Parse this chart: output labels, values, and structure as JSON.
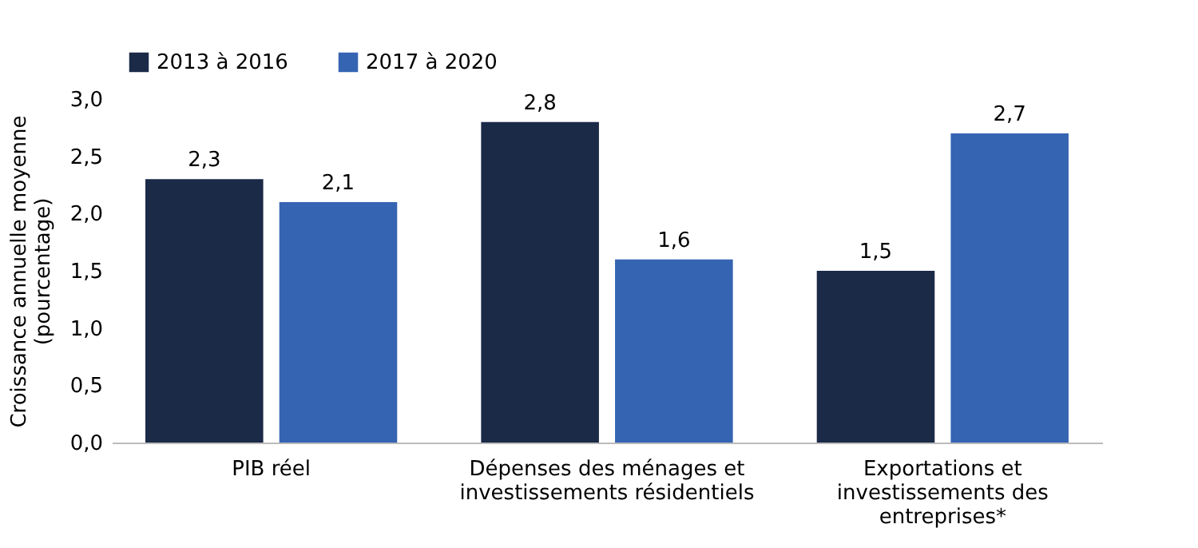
{
  "chart_data": {
    "type": "bar",
    "ylabel": "Croissance annuelle moyenne (pourcentage)",
    "categories": [
      "PIB réel",
      "Dépenses des ménages et investissements résidentiels",
      "Exportations et investissements des entreprises*"
    ],
    "series": [
      {
        "name": "2013 à 2016",
        "color": "#1b2a47",
        "values": [
          2.3,
          2.8,
          1.5
        ],
        "value_labels": [
          "2,3",
          "2,8",
          "1,5"
        ]
      },
      {
        "name": "2017 à 2020",
        "color": "#3564b2",
        "values": [
          2.1,
          1.6,
          2.7
        ],
        "value_labels": [
          "2,1",
          "1,6",
          "2,7"
        ]
      }
    ],
    "ylim": [
      0,
      3
    ],
    "yticks": [
      {
        "value": 0,
        "label": "0,0"
      },
      {
        "value": 0.5,
        "label": "0,5"
      },
      {
        "value": 1,
        "label": "1,0"
      },
      {
        "value": 1.5,
        "label": "1,5"
      },
      {
        "value": 2,
        "label": "2,0"
      },
      {
        "value": 2.5,
        "label": "2,5"
      },
      {
        "value": 3,
        "label": "3,0"
      }
    ],
    "grid": false,
    "legend": "top left"
  }
}
